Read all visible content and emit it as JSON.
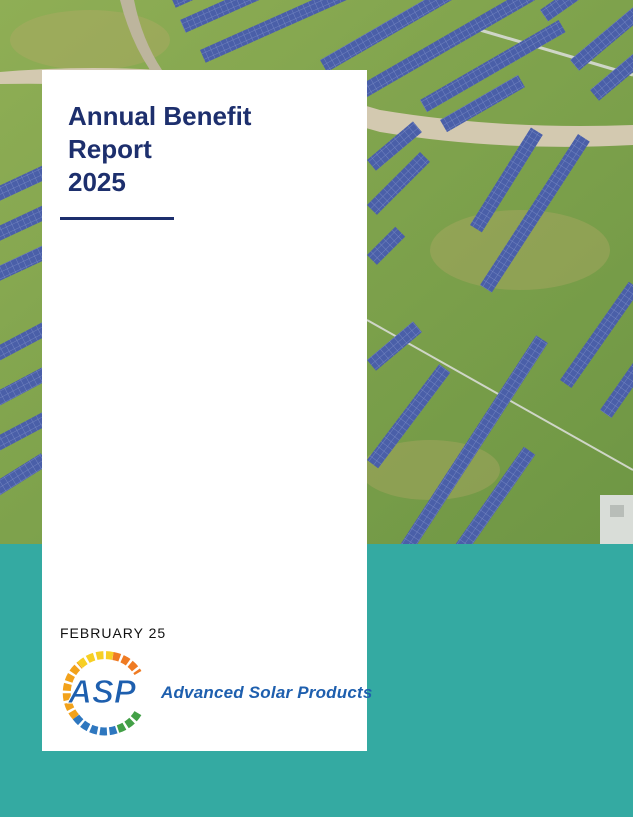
{
  "report": {
    "title_line1": "Annual Benefit",
    "title_line2": "Report",
    "title_line3": "2025",
    "date": "FEBRUARY 25"
  },
  "brand": {
    "logo_text": "ASP",
    "company_name": "Advanced Solar Products"
  },
  "colors": {
    "navy": "#1d2f6d",
    "teal": "#34aaa2",
    "brand_blue": "#1e5fae",
    "grass": "#7fa64e"
  },
  "cover_image": {
    "icon": "solar-farm-aerial-photo"
  }
}
